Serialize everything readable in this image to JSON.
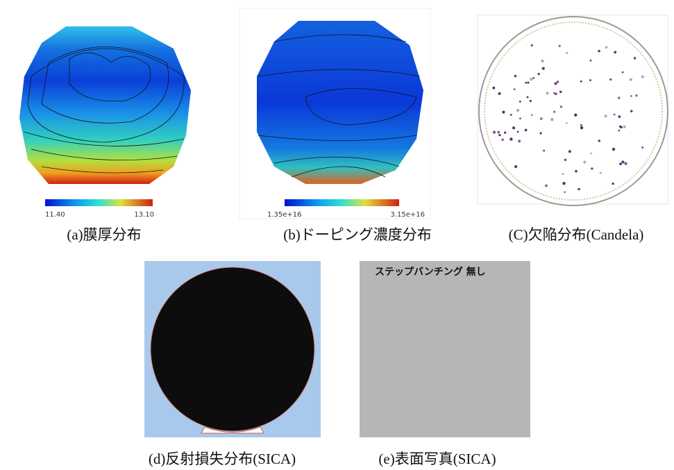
{
  "panels": [
    {
      "caption": "(a)膜厚分布",
      "colorbar": {
        "min_label": "11.40",
        "max_label": "13.10"
      }
    },
    {
      "caption": "(b)ドーピング濃度分布",
      "colorbar": {
        "min_label": "1.35e+16",
        "max_label": "3.15e+16"
      }
    },
    {
      "caption": "(C)欠陥分布(Candela)"
    },
    {
      "caption": "(d)反射損失分布(SICA)"
    },
    {
      "caption": "(e)表面写真(SICA)",
      "overlay_text": "ステップバンチング 無し"
    }
  ]
}
